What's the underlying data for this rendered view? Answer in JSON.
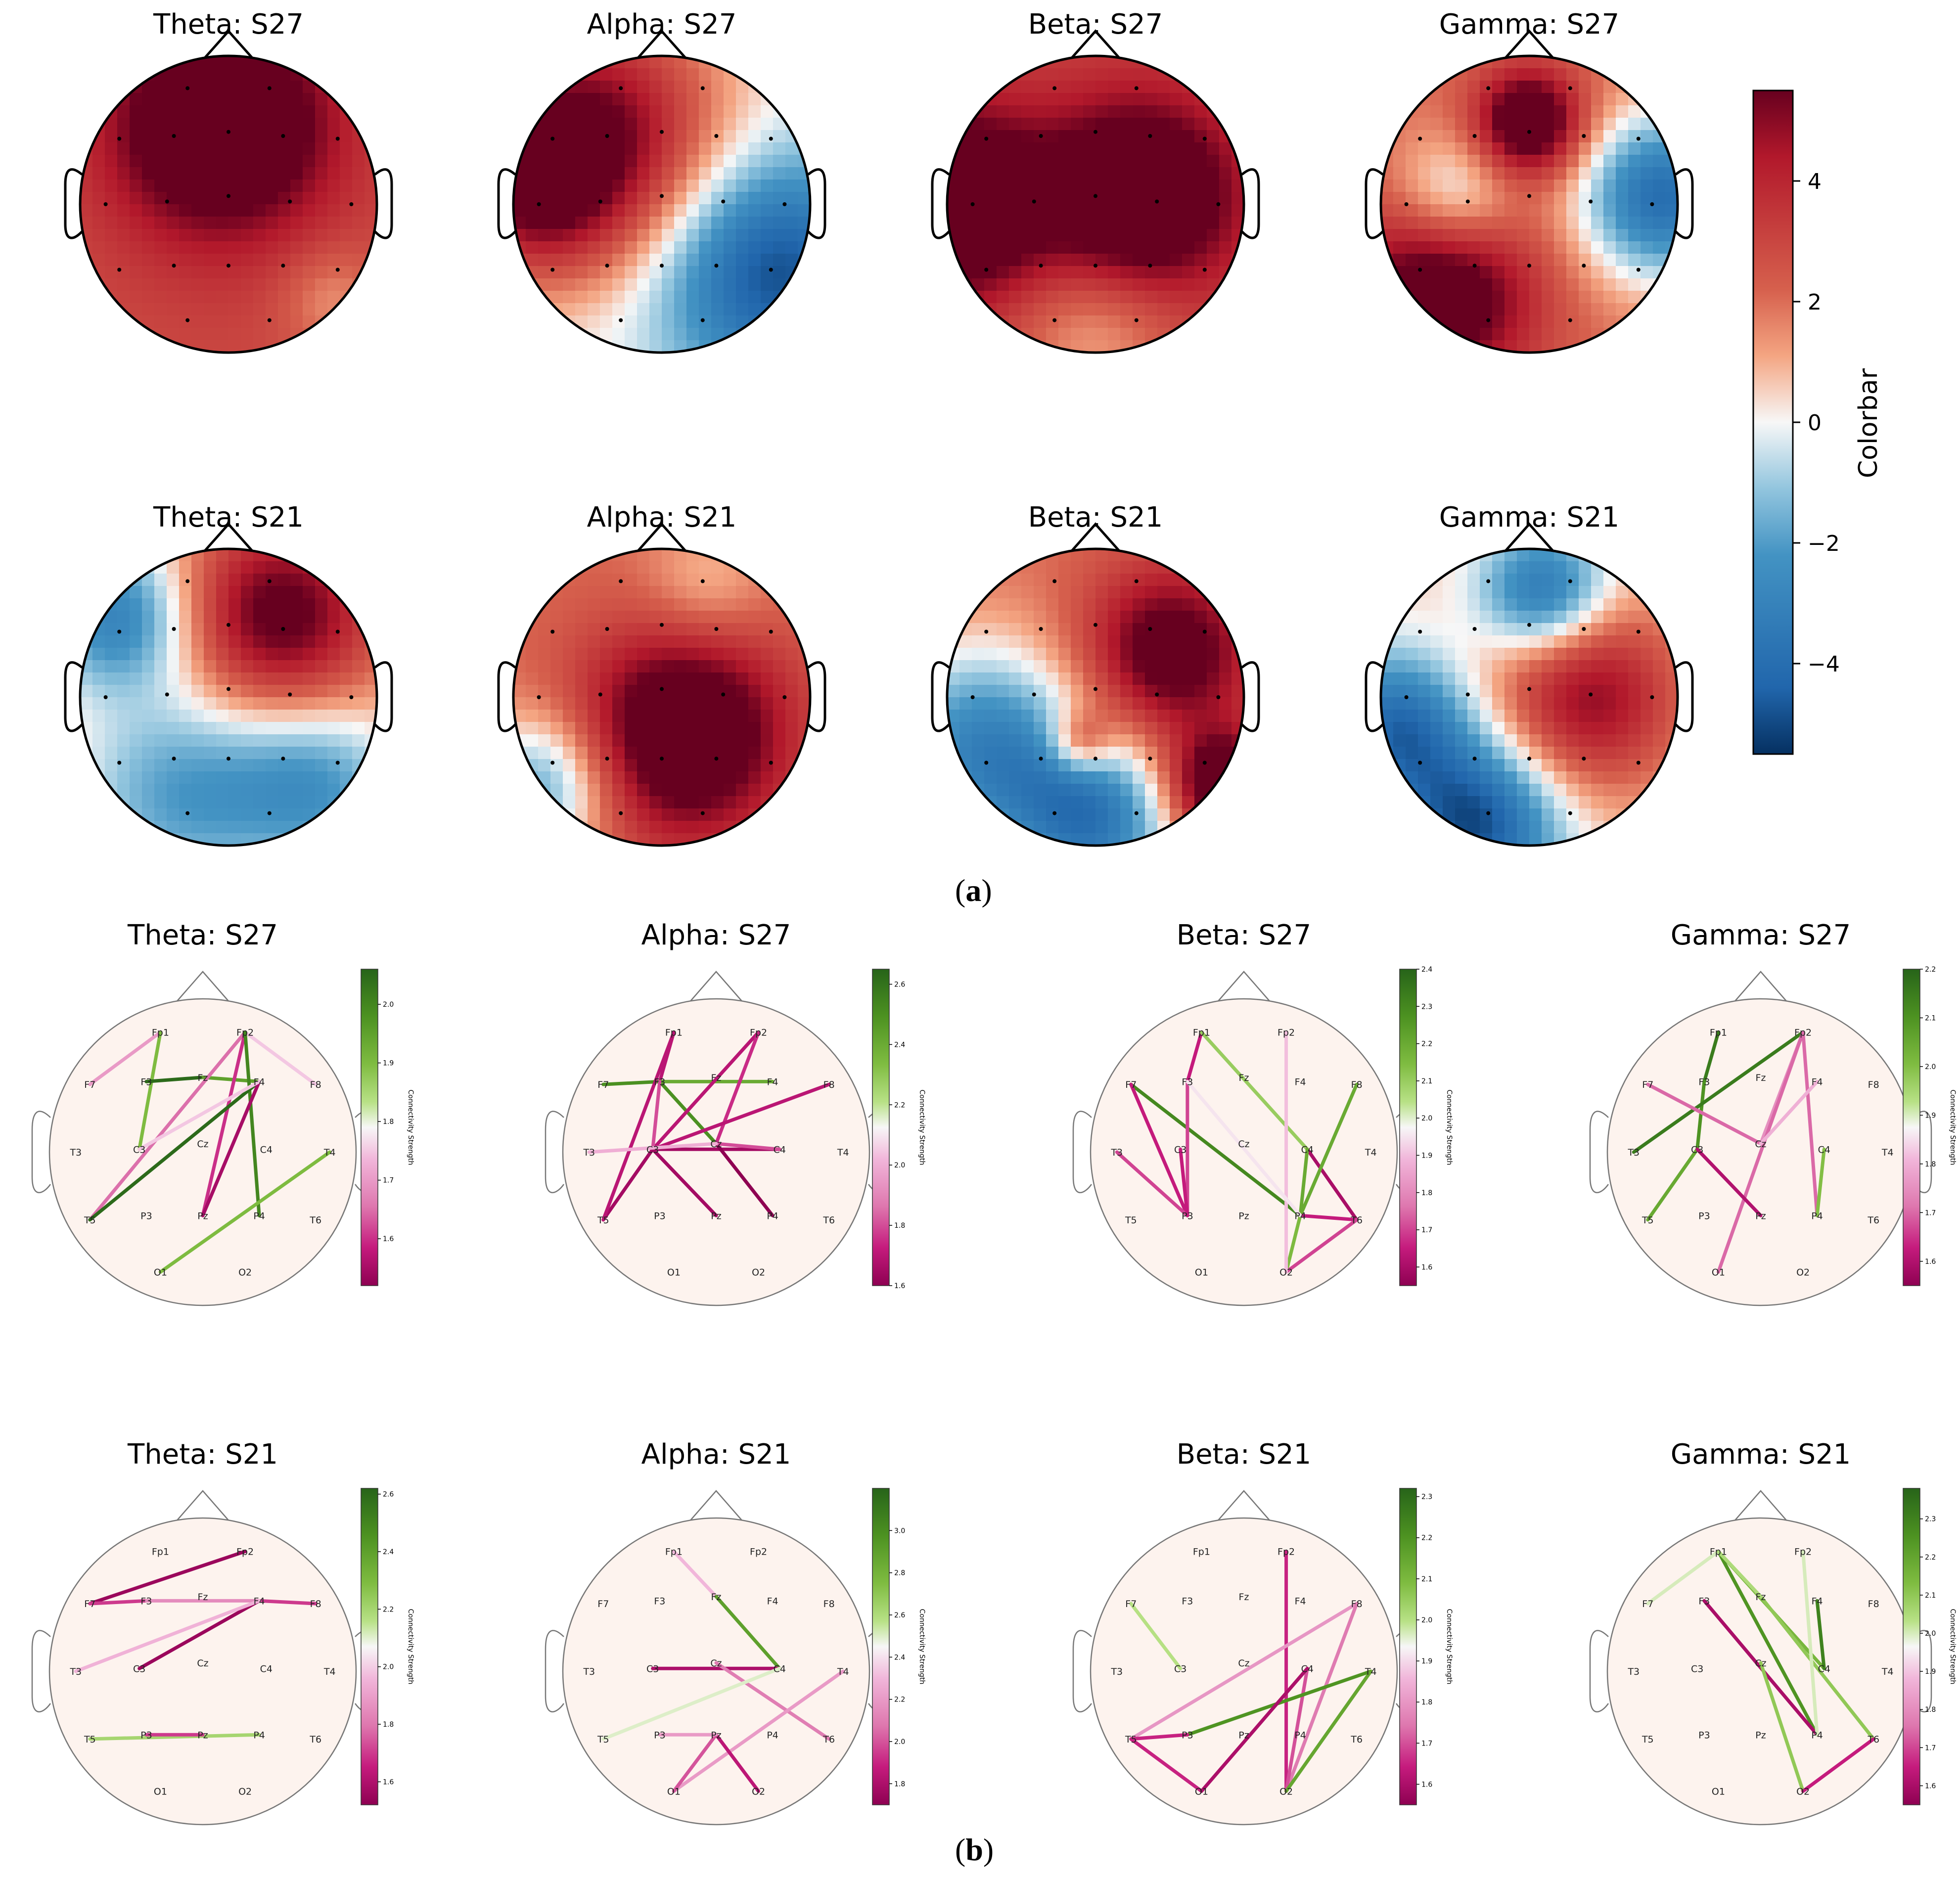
{
  "chart_data": {
    "type": "topomap-and-connectivity",
    "panels": [
      {
        "label": "(a)",
        "label_bold": "a",
        "description": ""
      },
      {
        "label": "(b)",
        "label_bold": "b",
        "description": ""
      }
    ],
    "topomaps": [
      {
        "title": "Theta: S27",
        "band": "Theta",
        "subject": "S27",
        "sources": [
          [
            -0.05,
            0.55,
            5.0,
            0.5
          ],
          [
            0,
            0,
            2.0,
            2.0
          ],
          [
            0.7,
            -0.65,
            -1.5,
            0.25
          ]
        ],
        "base": 1.2
      },
      {
        "title": "Alpha: S27",
        "band": "Alpha",
        "subject": "S27",
        "sources": [
          [
            -0.45,
            0.45,
            5.5,
            0.6
          ],
          [
            0.75,
            -0.45,
            -5.0,
            0.55
          ],
          [
            -0.9,
            0.1,
            3.5,
            0.4
          ]
        ],
        "base": 0
      },
      {
        "title": "Beta: S27",
        "band": "Beta",
        "subject": "S27",
        "sources": [
          [
            -0.95,
            0,
            5.0,
            0.45
          ],
          [
            0.3,
            0.05,
            5.0,
            0.45
          ],
          [
            0,
            -0.85,
            -2.0,
            0.4
          ]
        ],
        "base": 3.0
      },
      {
        "title": "Gamma: S27",
        "band": "Gamma",
        "subject": "S27",
        "sources": [
          [
            0,
            0.55,
            5.5,
            0.25
          ],
          [
            -0.5,
            0.05,
            -3.0,
            0.3
          ],
          [
            0.9,
            0.05,
            -6.0,
            0.4
          ],
          [
            -0.6,
            -0.6,
            5.0,
            0.45
          ]
        ],
        "base": 2.0
      },
      {
        "title": "Theta: S21",
        "band": "Theta",
        "subject": "S21",
        "sources": [
          [
            -0.75,
            0.55,
            -4.0,
            0.35
          ],
          [
            0.35,
            0.55,
            5.0,
            0.45
          ],
          [
            -0.3,
            -0.65,
            -3.0,
            0.5
          ],
          [
            0.6,
            -0.6,
            -3.0,
            0.4
          ]
        ],
        "base": 1.0
      },
      {
        "title": "Alpha: S21",
        "band": "Alpha",
        "subject": "S21",
        "sources": [
          [
            0.15,
            -0.25,
            5.5,
            0.5
          ],
          [
            -0.8,
            -0.6,
            -4.0,
            0.35
          ],
          [
            0.3,
            0.75,
            -1.5,
            0.3
          ]
        ],
        "base": 2.0
      },
      {
        "title": "Beta: S21",
        "band": "Beta",
        "subject": "S21",
        "sources": [
          [
            -0.75,
            -0.35,
            -5.0,
            0.5
          ],
          [
            0,
            -0.85,
            -5.0,
            0.4
          ],
          [
            0.5,
            0.3,
            4.5,
            0.4
          ],
          [
            0.85,
            -0.6,
            5.5,
            0.25
          ],
          [
            -0.1,
            -0.3,
            3.0,
            0.15
          ]
        ],
        "base": 2.0
      },
      {
        "title": "Gamma: S21",
        "band": "Gamma",
        "subject": "S21",
        "sources": [
          [
            0.1,
            0.7,
            -4.5,
            0.3
          ],
          [
            -0.9,
            -0.2,
            -4.5,
            0.35
          ],
          [
            -0.35,
            -0.85,
            -5.5,
            0.4
          ],
          [
            0.4,
            0,
            4.5,
            0.45
          ]
        ],
        "base": 0.5
      }
    ],
    "colorbar": {
      "label": "Colorbar",
      "ticks": [
        "4",
        "2",
        "0",
        "−2",
        "−4"
      ],
      "tick_values": [
        4,
        2,
        0,
        -2,
        -4
      ],
      "range": [
        -5.5,
        5.5
      ],
      "colormap": "RdBu_r"
    },
    "electrodes": [
      {
        "name": "Fp1",
        "x": -0.3,
        "y": 0.85
      },
      {
        "name": "Fp2",
        "x": 0.3,
        "y": 0.85
      },
      {
        "name": "F7",
        "x": -0.8,
        "y": 0.48
      },
      {
        "name": "F3",
        "x": -0.4,
        "y": 0.5
      },
      {
        "name": "Fz",
        "x": 0.0,
        "y": 0.53
      },
      {
        "name": "F4",
        "x": 0.4,
        "y": 0.5
      },
      {
        "name": "F8",
        "x": 0.8,
        "y": 0.48
      },
      {
        "name": "T3",
        "x": -0.9,
        "y": 0.0
      },
      {
        "name": "C3",
        "x": -0.45,
        "y": 0.02
      },
      {
        "name": "Cz",
        "x": 0.0,
        "y": 0.06
      },
      {
        "name": "C4",
        "x": 0.45,
        "y": 0.02
      },
      {
        "name": "T4",
        "x": 0.9,
        "y": 0.0
      },
      {
        "name": "T5",
        "x": -0.8,
        "y": -0.48
      },
      {
        "name": "P3",
        "x": -0.4,
        "y": -0.45
      },
      {
        "name": "Pz",
        "x": 0.0,
        "y": -0.45
      },
      {
        "name": "P4",
        "x": 0.4,
        "y": -0.45
      },
      {
        "name": "T6",
        "x": 0.8,
        "y": -0.48
      },
      {
        "name": "O1",
        "x": -0.3,
        "y": -0.85
      },
      {
        "name": "O2",
        "x": 0.3,
        "y": -0.85
      }
    ],
    "connectivity": [
      {
        "title": "Theta: S27",
        "cbar_label": "Connectivity Strength",
        "vrange": [
          1.52,
          2.06
        ],
        "ticks": [
          {
            "v": 2.0,
            "t": "2.0"
          },
          {
            "v": 1.9,
            "t": "1.9"
          },
          {
            "v": 1.8,
            "t": "1.8"
          },
          {
            "v": 1.7,
            "t": "1.7"
          },
          {
            "v": 1.6,
            "t": "1.6"
          }
        ],
        "edges": [
          [
            "Fp1",
            "F7",
            1.7
          ],
          [
            "Fp1",
            "C3",
            1.9
          ],
          [
            "F3",
            "Fz",
            2.05
          ],
          [
            "Fz",
            "F4",
            1.95
          ],
          [
            "Fp2",
            "T5",
            1.65
          ],
          [
            "Fp2",
            "Pz",
            1.6
          ],
          [
            "Fp2",
            "F8",
            1.75
          ],
          [
            "Fp2",
            "P4",
            2.0
          ],
          [
            "F4",
            "T5",
            2.05
          ],
          [
            "F4",
            "Pz",
            1.55
          ],
          [
            "O1",
            "T4",
            1.9
          ],
          [
            "C3",
            "F4",
            1.75
          ]
        ]
      },
      {
        "title": "Alpha: S27",
        "cbar_label": "Connectivity Strength",
        "vrange": [
          1.6,
          2.65
        ],
        "ticks": [
          {
            "v": 2.6,
            "t": "2.6"
          },
          {
            "v": 2.4,
            "t": "2.4"
          },
          {
            "v": 2.2,
            "t": "2.2"
          },
          {
            "v": 2.0,
            "t": "2.0"
          },
          {
            "v": 1.8,
            "t": "1.8"
          },
          {
            "v": 1.6,
            "t": "1.6"
          }
        ],
        "edges": [
          [
            "Fp1",
            "F3",
            1.7
          ],
          [
            "F7",
            "F3",
            2.5
          ],
          [
            "F3",
            "F4",
            2.4
          ],
          [
            "F3",
            "Cz",
            2.5
          ],
          [
            "Fp2",
            "C3",
            1.7
          ],
          [
            "Fp2",
            "Cz",
            1.75
          ],
          [
            "C3",
            "C4",
            1.65
          ],
          [
            "C3",
            "F8",
            1.7
          ],
          [
            "C3",
            "T5",
            1.65
          ],
          [
            "Cz",
            "P4",
            1.6
          ],
          [
            "Cz",
            "C4",
            1.8
          ],
          [
            "F3",
            "C3",
            1.8
          ],
          [
            "Fp1",
            "T5",
            1.7
          ],
          [
            "C3",
            "Pz",
            1.65
          ],
          [
            "T3",
            "Cz",
            2.0
          ]
        ]
      },
      {
        "title": "Beta: S27",
        "cbar_label": "Connectivity Strength",
        "vrange": [
          1.55,
          2.4
        ],
        "ticks": [
          {
            "v": 2.4,
            "t": "2.4"
          },
          {
            "v": 2.3,
            "t": "2.3"
          },
          {
            "v": 2.2,
            "t": "2.2"
          },
          {
            "v": 2.1,
            "t": "2.1"
          },
          {
            "v": 2.0,
            "t": "2.0"
          },
          {
            "v": 1.9,
            "t": "1.9"
          },
          {
            "v": 1.8,
            "t": "1.8"
          },
          {
            "v": 1.7,
            "t": "1.7"
          },
          {
            "v": 1.6,
            "t": "1.6"
          }
        ],
        "edges": [
          [
            "Fp1",
            "F3",
            1.65
          ],
          [
            "Fp1",
            "C4",
            2.1
          ],
          [
            "F7",
            "P4",
            2.3
          ],
          [
            "F7",
            "P3",
            1.65
          ],
          [
            "F3",
            "P3",
            1.7
          ],
          [
            "T3",
            "P3",
            1.7
          ],
          [
            "C3",
            "P3",
            1.65
          ],
          [
            "C4",
            "T6",
            1.6
          ],
          [
            "C4",
            "P4",
            2.2
          ],
          [
            "F8",
            "P4",
            2.2
          ],
          [
            "P4",
            "O2",
            2.15
          ],
          [
            "P4",
            "T6",
            1.65
          ],
          [
            "T6",
            "O2",
            1.7
          ],
          [
            "Fp2",
            "O2",
            1.9
          ],
          [
            "F3",
            "P4",
            1.95
          ]
        ]
      },
      {
        "title": "Gamma: S27",
        "cbar_label": "Connectivity Strength",
        "vrange": [
          1.55,
          2.2
        ],
        "ticks": [
          {
            "v": 2.2,
            "t": "2.2"
          },
          {
            "v": 2.1,
            "t": "2.1"
          },
          {
            "v": 2.0,
            "t": "2.0"
          },
          {
            "v": 1.9,
            "t": "1.9"
          },
          {
            "v": 1.8,
            "t": "1.8"
          },
          {
            "v": 1.7,
            "t": "1.7"
          },
          {
            "v": 1.6,
            "t": "1.6"
          }
        ],
        "edges": [
          [
            "Fp1",
            "F3",
            2.15
          ],
          [
            "F3",
            "C3",
            2.1
          ],
          [
            "C3",
            "T5",
            2.05
          ],
          [
            "Fp2",
            "T3",
            2.15
          ],
          [
            "Fp2",
            "Cz",
            1.75
          ],
          [
            "Fp2",
            "P4",
            1.7
          ],
          [
            "Fp2",
            "O1",
            1.7
          ],
          [
            "F7",
            "Cz",
            1.7
          ],
          [
            "C3",
            "Pz",
            1.6
          ],
          [
            "C4",
            "P4",
            2.0
          ],
          [
            "Cz",
            "F4",
            1.8
          ]
        ]
      },
      {
        "title": "Theta: S21",
        "cbar_label": "Connectivity Strength",
        "vrange": [
          1.52,
          2.62
        ],
        "ticks": [
          {
            "v": 2.6,
            "t": "2.6"
          },
          {
            "v": 2.4,
            "t": "2.4"
          },
          {
            "v": 2.2,
            "t": "2.2"
          },
          {
            "v": 2.0,
            "t": "2.0"
          },
          {
            "v": 1.8,
            "t": "1.8"
          },
          {
            "v": 1.6,
            "t": "1.6"
          }
        ],
        "edges": [
          [
            "F7",
            "Fp2",
            1.55
          ],
          [
            "F7",
            "F3",
            1.7
          ],
          [
            "F3",
            "F4",
            1.85
          ],
          [
            "F4",
            "F8",
            1.7
          ],
          [
            "C3",
            "F4",
            1.55
          ],
          [
            "T5",
            "P4",
            2.2
          ],
          [
            "P3",
            "Pz",
            1.7
          ],
          [
            "T3",
            "F4",
            1.95
          ]
        ]
      },
      {
        "title": "Alpha: S21",
        "cbar_label": "Connectivity Strength",
        "vrange": [
          1.7,
          3.2
        ],
        "ticks": [
          {
            "v": 3.0,
            "t": "3.0"
          },
          {
            "v": 2.8,
            "t": "2.8"
          },
          {
            "v": 2.6,
            "t": "2.6"
          },
          {
            "v": 2.4,
            "t": "2.4"
          },
          {
            "v": 2.2,
            "t": "2.2"
          },
          {
            "v": 2.0,
            "t": "2.0"
          },
          {
            "v": 1.8,
            "t": "1.8"
          }
        ],
        "edges": [
          [
            "Fp1",
            "Fz",
            2.3
          ],
          [
            "Fz",
            "C4",
            2.9
          ],
          [
            "C3",
            "C4",
            1.8
          ],
          [
            "Cz",
            "T6",
            2.1
          ],
          [
            "T5",
            "C4",
            2.5
          ],
          [
            "O1",
            "T4",
            2.2
          ],
          [
            "O1",
            "Pz",
            2.0
          ],
          [
            "Pz",
            "O2",
            1.85
          ],
          [
            "P3",
            "Pz",
            2.2
          ]
        ]
      },
      {
        "title": "Beta: S21",
        "cbar_label": "Connectivity Strength",
        "vrange": [
          1.55,
          2.32
        ],
        "ticks": [
          {
            "v": 2.3,
            "t": "2.3"
          },
          {
            "v": 2.2,
            "t": "2.2"
          },
          {
            "v": 2.1,
            "t": "2.1"
          },
          {
            "v": 2.0,
            "t": "2.0"
          },
          {
            "v": 1.9,
            "t": "1.9"
          },
          {
            "v": 1.8,
            "t": "1.8"
          },
          {
            "v": 1.7,
            "t": "1.7"
          },
          {
            "v": 1.6,
            "t": "1.6"
          }
        ],
        "edges": [
          [
            "Fp2",
            "O2",
            1.65
          ],
          [
            "F8",
            "T5",
            1.8
          ],
          [
            "F8",
            "O2",
            1.75
          ],
          [
            "C4",
            "O2",
            1.7
          ],
          [
            "T4",
            "P3",
            2.2
          ],
          [
            "T5",
            "P3",
            1.65
          ],
          [
            "T5",
            "O1",
            1.65
          ],
          [
            "O1",
            "C4",
            1.6
          ],
          [
            "T4",
            "O2",
            2.15
          ],
          [
            "F7",
            "C3",
            2.0
          ]
        ]
      },
      {
        "title": "Gamma: S21",
        "cbar_label": "Connectivity Strength",
        "vrange": [
          1.55,
          2.38
        ],
        "ticks": [
          {
            "v": 2.3,
            "t": "2.3"
          },
          {
            "v": 2.2,
            "t": "2.2"
          },
          {
            "v": 2.1,
            "t": "2.1"
          },
          {
            "v": 2.0,
            "t": "2.0"
          },
          {
            "v": 1.9,
            "t": "1.9"
          },
          {
            "v": 1.8,
            "t": "1.8"
          },
          {
            "v": 1.7,
            "t": "1.7"
          },
          {
            "v": 1.6,
            "t": "1.6"
          }
        ],
        "edges": [
          [
            "Fp1",
            "P4",
            2.25
          ],
          [
            "Fp1",
            "C4",
            2.15
          ],
          [
            "Fp1",
            "F7",
            2.0
          ],
          [
            "Fz",
            "T6",
            2.1
          ],
          [
            "F4",
            "C4",
            2.3
          ],
          [
            "F3",
            "P4",
            1.6
          ],
          [
            "Cz",
            "O2",
            2.1
          ],
          [
            "Fp2",
            "P4",
            2.0
          ],
          [
            "T6",
            "O2",
            1.65
          ],
          [
            "Fp1",
            "Fz",
            2.05
          ]
        ]
      }
    ]
  }
}
